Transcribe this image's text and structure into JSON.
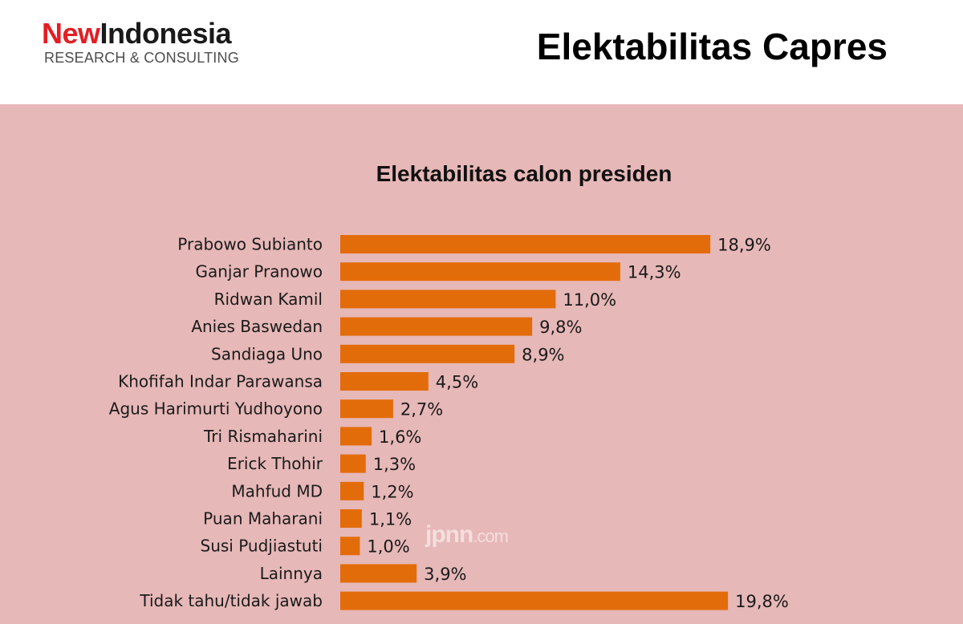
{
  "header": {
    "logo_new": "New",
    "logo_indonesia": "Indonesia",
    "logo_sub": "RESEARCH & CONSULTING",
    "title": "Elektabilitas Capres"
  },
  "watermark": {
    "main": "jpnn",
    "suffix": ".com"
  },
  "colors": {
    "bar": "#e36c0a",
    "panel": "#e6b8b7",
    "text": "#1a1a1a"
  },
  "chart_data": {
    "type": "bar",
    "orientation": "horizontal",
    "title": "Elektabilitas calon presiden",
    "categories": [
      "Prabowo Subianto",
      "Ganjar Pranowo",
      "Ridwan Kamil",
      "Anies Baswedan",
      "Sandiaga Uno",
      "Khofifah Indar Parawansa",
      "Agus Harimurti Yudhoyono",
      "Tri Rismaharini",
      "Erick Thohir",
      "Mahfud MD",
      "Puan Maharani",
      "Susi Pudjiastuti",
      "Lainnya",
      "Tidak tahu/tidak jawab"
    ],
    "values": [
      18.9,
      14.3,
      11.0,
      9.8,
      8.9,
      4.5,
      2.7,
      1.6,
      1.3,
      1.2,
      1.1,
      1.0,
      3.9,
      19.8
    ],
    "value_labels": [
      "18,9%",
      "14,3%",
      "11,0%",
      "9,8%",
      "8,9%",
      "4,5%",
      "2,7%",
      "1,6%",
      "1,3%",
      "1,2%",
      "1,1%",
      "1,0%",
      "3,9%",
      "19,8%"
    ],
    "grid": false,
    "legend": "none"
  }
}
